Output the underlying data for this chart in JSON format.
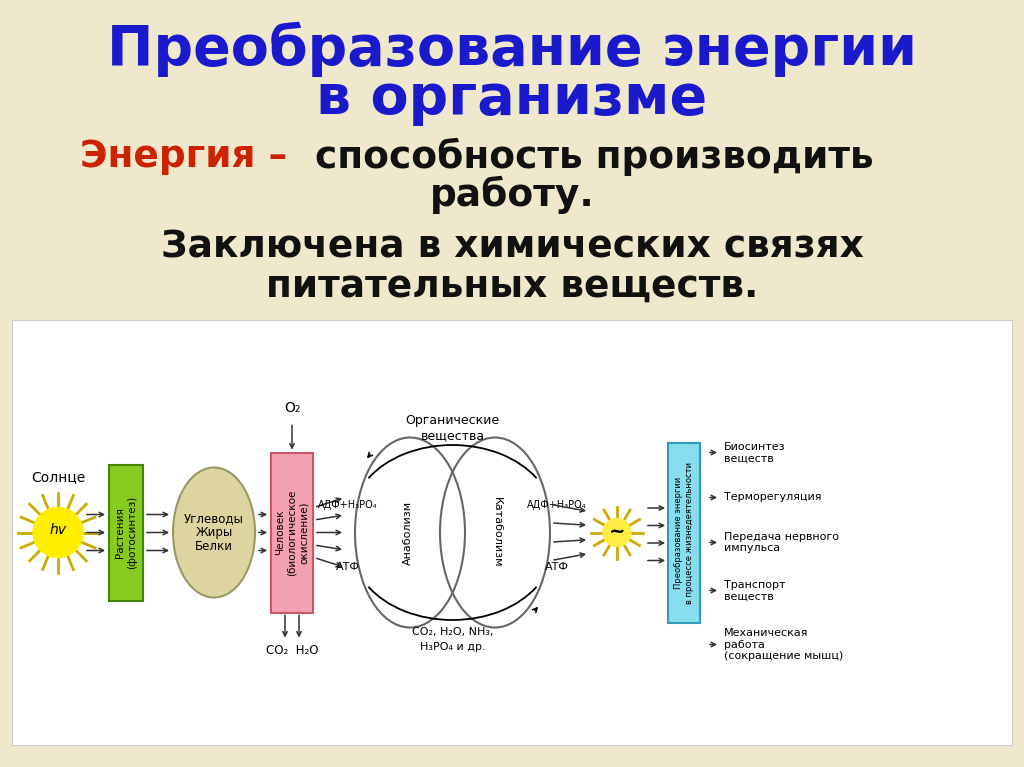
{
  "bg_color": "#f0e8cc",
  "title_line1": "Преобразование энергии",
  "title_line2": "в организме",
  "title_color": "#1a1acc",
  "subtitle_red": "Энергия –",
  "subtitle_red_color": "#cc2200",
  "subtitle_black1": " способность производить",
  "subtitle_black2": "работу.",
  "text2_line1": "Заключена в химических связях",
  "text2_line2": "питательных веществ.",
  "text_black_color": "#111111",
  "diagram_bg": "#ffffff",
  "sun_color": "#ffee00",
  "sun_spike_color": "#ccaa00",
  "plant_box_color": "#88cc22",
  "plant_border_color": "#448800",
  "oval_color": "#ddd4a0",
  "oval_border": "#999966",
  "human_box_color": "#f4a0b0",
  "human_border": "#cc5566",
  "energy_box_color": "#88ddee",
  "energy_border": "#3399bb",
  "star_color": "#ffee44",
  "star_spike_color": "#ccaa00",
  "arrow_color": "#333333"
}
